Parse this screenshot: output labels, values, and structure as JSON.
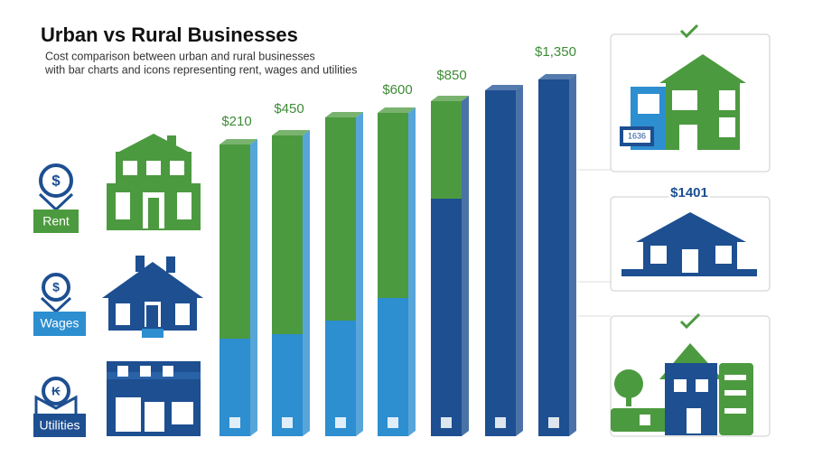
{
  "header": {
    "title": "Urban vs Rural Businesses",
    "subtitle": [
      "Cost comparison between urban and rural businesses",
      "with bar charts and icons representing rent, wages and utilities"
    ]
  },
  "cost_labels": [
    "Rent",
    "Wages",
    "Utilities"
  ],
  "price_labels": [
    "$210",
    "$450",
    "$600",
    "$850",
    "$1,350"
  ],
  "panels": {
    "plaque": "1636",
    "middle_price": "$1401"
  }
}
